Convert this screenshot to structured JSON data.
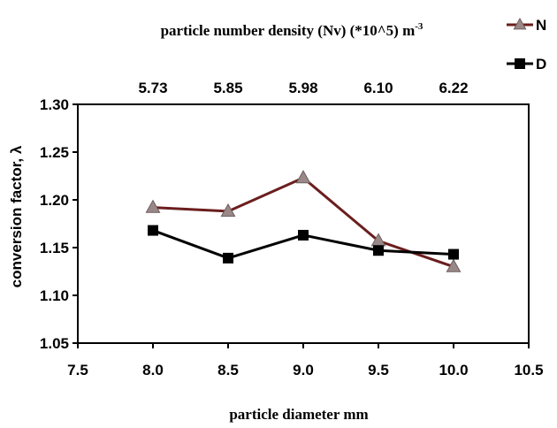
{
  "chart_data": {
    "type": "line",
    "title": "particle number density (Nv) (*10^5) m",
    "title_superscript": "-3",
    "xlabel": "particle diameter  mm",
    "ylabel": "conversion factor, λ",
    "x": [
      8.0,
      8.5,
      9.0,
      9.5,
      10.0
    ],
    "xlim": [
      7.5,
      10.5
    ],
    "ylim": [
      1.05,
      1.3
    ],
    "x_ticks": [
      "7.5",
      "8.0",
      "8.5",
      "9.0",
      "9.5",
      "10.0",
      "10.5"
    ],
    "y_ticks": [
      "1.05",
      "1.10",
      "1.15",
      "1.20",
      "1.25",
      "1.30"
    ],
    "top_axis_ticks": [
      "5.73",
      "5.85",
      "5.98",
      "6.10",
      "6.22"
    ],
    "grid": false,
    "legend_position": "top-right",
    "series": [
      {
        "name": "N",
        "values": [
          1.192,
          1.188,
          1.223,
          1.157,
          1.13
        ],
        "color": "#6b1e1e",
        "marker": "triangle",
        "marker_color": "#9a8888"
      },
      {
        "name": "D",
        "values": [
          1.168,
          1.139,
          1.163,
          1.147,
          1.143
        ],
        "color": "#000000",
        "marker": "square",
        "marker_color": "#000000"
      }
    ]
  }
}
